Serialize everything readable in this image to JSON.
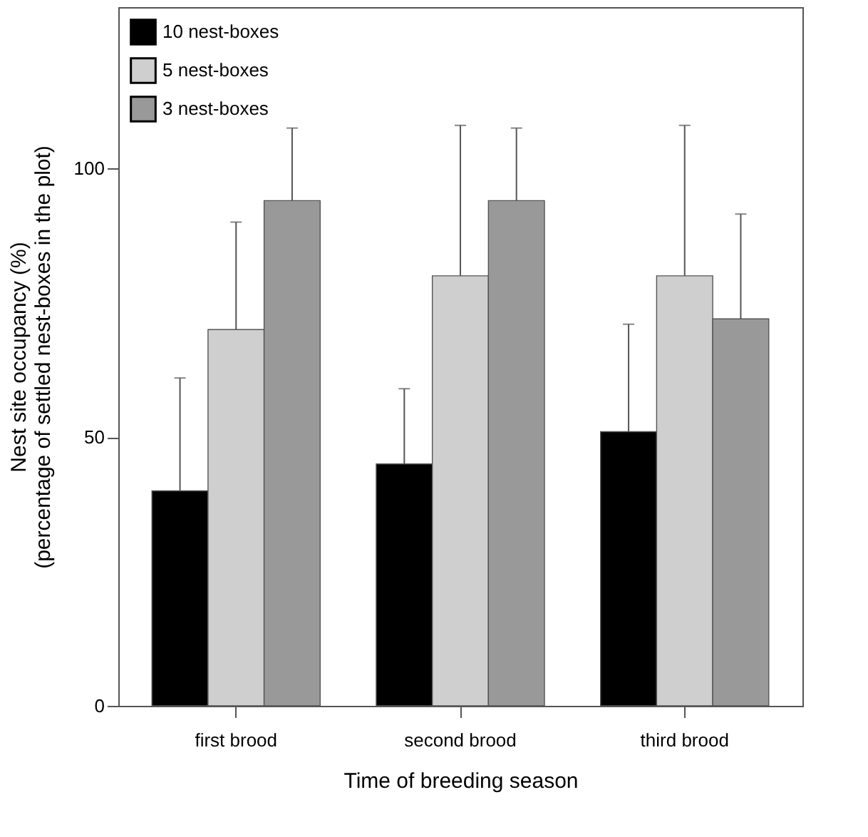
{
  "chart_data": {
    "type": "bar",
    "xlabel": "Time of breeding season",
    "ylabel": "Nest site occupancy (%)\n(percentage of settled nest-boxes in the plot)",
    "categories": [
      "first brood",
      "second brood",
      "third brood"
    ],
    "series": [
      {
        "name": "10 nest-boxes",
        "color": "#000000",
        "values": [
          40,
          45,
          51
        ],
        "errors": [
          [
            40,
            61
          ],
          [
            45,
            59
          ],
          [
            51,
            71
          ]
        ]
      },
      {
        "name": "5 nest-boxes",
        "color": "#cfcfcf",
        "values": [
          70,
          80,
          80
        ],
        "errors": [
          [
            70,
            90
          ],
          [
            80,
            108
          ],
          [
            80,
            108
          ]
        ]
      },
      {
        "name": "3 nest-boxes",
        "color": "#999999",
        "values": [
          94,
          94,
          72
        ],
        "errors": [
          [
            94,
            107.5
          ],
          [
            94,
            107.5
          ],
          [
            72,
            91.5
          ]
        ]
      }
    ],
    "ylim": [
      0,
      130
    ],
    "yticks": [
      0,
      50,
      100
    ],
    "grid": false,
    "legend": "top left"
  }
}
